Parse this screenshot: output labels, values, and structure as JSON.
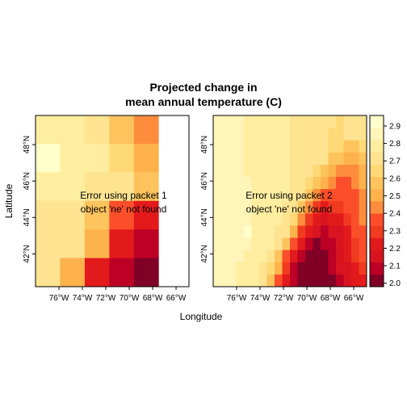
{
  "chart_data": {
    "type": "heatmap",
    "title_line1": "Projected change in",
    "title_line2": "mean annual temperature (C)",
    "xlabel": "Longitude",
    "ylabel": "Latitude",
    "x_ticks": [
      "76°W",
      "74°W",
      "72°W",
      "70°W",
      "68°W",
      "66°W"
    ],
    "x_tick_values": [
      -76,
      -74,
      -72,
      -70,
      -68,
      -66
    ],
    "xlim": [
      -78,
      -64.9
    ],
    "y_ticks": [
      "42°N",
      "44°N",
      "46°N",
      "48°N"
    ],
    "y_tick_values": [
      42,
      44,
      46,
      48
    ],
    "ylim": [
      40.2,
      49.6
    ],
    "colorbar": {
      "ticks": [
        "2.0",
        "2.1",
        "2.2",
        "2.3",
        "2.4",
        "2.5",
        "2.6",
        "2.7",
        "2.8",
        "2.9"
      ],
      "tick_values": [
        2.0,
        2.1,
        2.2,
        2.3,
        2.4,
        2.5,
        2.6,
        2.7,
        2.8,
        2.9
      ],
      "range": [
        1.98,
        2.96
      ],
      "colors": [
        "#800026",
        "#bd0026",
        "#d7141f",
        "#e31a1c",
        "#f03b20",
        "#fc4e2a",
        "#fd8d3c",
        "#feb24c",
        "#fdc35d",
        "#fed976",
        "#fee391",
        "#ffeda0",
        "#fff5b8",
        "#ffffcc"
      ]
    },
    "panels": [
      {
        "name": "packet-1",
        "error_line1": "Error using packet 1",
        "error_line2": "object 'ne' not found",
        "grid": {
          "lon0": -78,
          "lat0": 40.2,
          "dlon": 2.1,
          "dlat": 1.57,
          "rows_top_to_bottom": [
            [
              2.8,
              2.76,
              2.72,
              2.6,
              2.44
            ],
            [
              2.92,
              2.82,
              2.8,
              2.66,
              2.52
            ],
            [
              2.76,
              2.76,
              2.72,
              2.68,
              2.54
            ],
            [
              2.72,
              2.72,
              2.6,
              2.34,
              2.2
            ],
            [
              2.72,
              2.68,
              2.5,
              2.24,
              2.1
            ],
            [
              2.72,
              2.5,
              2.2,
              2.1,
              1.98
            ]
          ]
        }
      },
      {
        "name": "packet-2",
        "error_line1": "Error using packet 2",
        "error_line2": "object 'ne' not found",
        "grid": {
          "lon0": -78,
          "lat0": 40.2,
          "dlon": 0.655,
          "dlat": 0.67,
          "rows_top_to_bottom": [
            [
              2.93,
              2.92,
              2.91,
              2.9,
              2.88,
              2.86,
              2.82,
              2.76,
              2.66,
              2.7,
              2.8,
              2.7,
              2.62,
              2.6,
              2.66,
              2.62,
              2.62,
              2.66,
              2.68,
              2.9
            ],
            [
              2.93,
              2.92,
              2.91,
              2.9,
              2.88,
              2.84,
              2.8,
              2.76,
              2.7,
              2.68,
              2.74,
              2.72,
              2.66,
              2.64,
              2.66,
              2.66,
              2.66,
              2.68,
              2.7,
              2.9
            ],
            [
              2.92,
              2.91,
              2.9,
              2.89,
              2.86,
              2.82,
              2.8,
              2.76,
              2.72,
              2.72,
              2.72,
              2.7,
              2.68,
              2.66,
              2.66,
              2.66,
              2.66,
              2.68,
              2.7,
              2.72
            ],
            [
              2.9,
              2.9,
              2.9,
              2.88,
              2.84,
              2.8,
              2.78,
              2.76,
              2.74,
              2.72,
              2.72,
              2.7,
              2.68,
              2.66,
              2.66,
              2.66,
              2.64,
              2.66,
              2.7,
              2.72
            ],
            [
              2.9,
              2.9,
              2.88,
              2.86,
              2.82,
              2.8,
              2.78,
              2.76,
              2.74,
              2.74,
              2.72,
              2.7,
              2.68,
              2.66,
              2.66,
              2.66,
              2.64,
              2.66,
              2.7,
              2.72
            ],
            [
              2.88,
              2.88,
              2.86,
              2.84,
              2.82,
              2.8,
              2.78,
              2.76,
              2.76,
              2.76,
              2.74,
              2.72,
              2.7,
              2.68,
              2.68,
              2.68,
              2.66,
              2.68,
              2.72,
              2.72
            ],
            [
              2.86,
              2.86,
              2.86,
              2.84,
              2.82,
              2.8,
              2.78,
              2.78,
              2.78,
              2.76,
              2.74,
              2.72,
              2.7,
              2.7,
              2.68,
              2.66,
              2.66,
              2.68,
              2.72,
              2.72
            ],
            [
              2.84,
              2.86,
              2.86,
              2.84,
              2.82,
              2.8,
              2.8,
              2.78,
              2.78,
              2.76,
              2.74,
              2.72,
              2.72,
              2.7,
              2.68,
              2.66,
              2.62,
              2.6,
              2.6,
              2.66
            ],
            [
              2.84,
              2.84,
              2.84,
              2.84,
              2.82,
              2.8,
              2.8,
              2.8,
              2.78,
              2.76,
              2.74,
              2.72,
              2.72,
              2.7,
              2.68,
              2.6,
              2.54,
              2.5,
              2.52,
              2.6
            ],
            [
              2.84,
              2.84,
              2.84,
              2.84,
              2.82,
              2.82,
              2.8,
              2.8,
              2.78,
              2.76,
              2.74,
              2.72,
              2.7,
              2.66,
              2.6,
              2.48,
              2.44,
              2.42,
              2.44,
              2.5
            ],
            [
              2.86,
              2.86,
              2.86,
              2.86,
              2.84,
              2.82,
              2.82,
              2.8,
              2.78,
              2.76,
              2.74,
              2.72,
              2.66,
              2.56,
              2.48,
              2.42,
              2.38,
              2.4,
              2.42,
              2.48
            ],
            [
              2.86,
              2.86,
              2.86,
              2.86,
              2.84,
              2.82,
              2.8,
              2.8,
              2.78,
              2.76,
              2.74,
              2.68,
              2.56,
              2.46,
              2.4,
              2.38,
              2.36,
              2.36,
              2.4,
              2.44
            ],
            [
              2.86,
              2.86,
              2.86,
              2.86,
              2.84,
              2.82,
              2.8,
              2.78,
              2.76,
              2.74,
              2.7,
              2.6,
              2.42,
              2.3,
              2.26,
              2.28,
              2.32,
              2.34,
              2.4,
              2.44
            ],
            [
              2.86,
              2.86,
              2.86,
              2.86,
              2.86,
              2.82,
              2.8,
              2.78,
              2.76,
              2.72,
              2.64,
              2.46,
              2.3,
              2.22,
              2.18,
              2.2,
              2.26,
              2.3,
              2.36,
              2.42
            ],
            [
              2.86,
              2.86,
              2.86,
              2.86,
              2.9,
              2.82,
              2.8,
              2.78,
              2.74,
              2.68,
              2.5,
              2.32,
              2.22,
              2.14,
              2.1,
              2.12,
              2.18,
              2.26,
              2.34,
              2.4
            ],
            [
              2.86,
              2.86,
              2.86,
              2.86,
              2.84,
              2.82,
              2.8,
              2.76,
              2.7,
              2.56,
              2.38,
              2.2,
              2.08,
              2.04,
              2.06,
              2.1,
              2.16,
              2.24,
              2.3,
              2.36
            ],
            [
              2.86,
              2.86,
              2.86,
              2.84,
              2.82,
              2.8,
              2.78,
              2.7,
              2.6,
              2.4,
              2.22,
              2.08,
              2.02,
              2.0,
              2.04,
              2.08,
              2.14,
              2.22,
              2.28,
              2.34
            ],
            [
              2.84,
              2.84,
              2.84,
              2.82,
              2.8,
              2.78,
              2.72,
              2.62,
              2.48,
              2.28,
              2.1,
              2.02,
              2.0,
              2.0,
              2.02,
              2.06,
              2.12,
              2.18,
              2.24,
              2.3
            ],
            [
              2.84,
              2.84,
              2.84,
              2.82,
              2.8,
              2.76,
              2.68,
              2.56,
              2.4,
              2.2,
              2.06,
              2.0,
              2.0,
              2.0,
              2.0,
              2.04,
              2.08,
              2.14,
              2.2,
              2.26
            ]
          ]
        }
      }
    ]
  }
}
